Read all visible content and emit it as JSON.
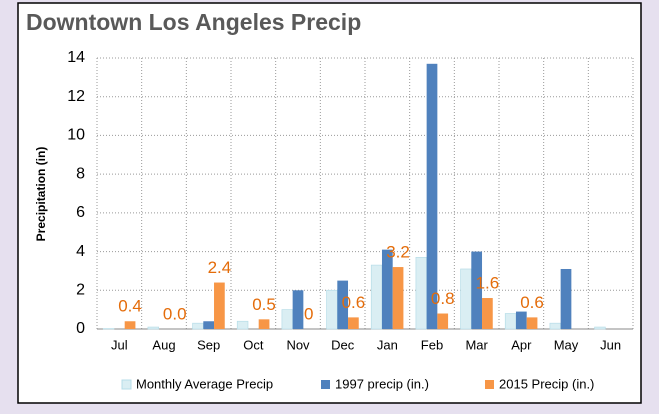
{
  "chart_data": {
    "type": "bar",
    "title": "Downtown Los Angeles Precip",
    "y_label": "Precipitation (in)",
    "categories": [
      "Jul",
      "Aug",
      "Sep",
      "Oct",
      "Nov",
      "Dec",
      "Jan",
      "Feb",
      "Mar",
      "Apr",
      "May",
      "Jun"
    ],
    "series": [
      {
        "name": "Monthly Average Precip",
        "color": "#daeef3",
        "values": [
          0.02,
          0.1,
          0.3,
          0.4,
          1.0,
          2.0,
          3.3,
          3.7,
          3.1,
          0.8,
          0.3,
          0.1
        ]
      },
      {
        "name": "1997 precip (in.)",
        "color": "#4f81bd",
        "values": [
          0,
          0,
          0.4,
          0,
          2.0,
          2.5,
          4.1,
          13.7,
          4.0,
          0.9,
          3.1,
          0
        ]
      },
      {
        "name": "2015 Precip (in.)",
        "color": "#f79646",
        "values": [
          0.4,
          0.0,
          2.4,
          0.5,
          0,
          0.6,
          3.2,
          0.8,
          1.6,
          0.6,
          null,
          null
        ],
        "value_labels": [
          "0.4",
          "0.0",
          "2.4",
          "0.5",
          "0",
          "0.6",
          "3.2",
          "0.8",
          "1.6",
          "0.6",
          null,
          null
        ]
      }
    ],
    "ylim": [
      0,
      14
    ],
    "yticks": [
      0,
      2,
      4,
      6,
      8,
      10,
      12,
      14
    ],
    "grid": true,
    "legend": "bottom"
  }
}
